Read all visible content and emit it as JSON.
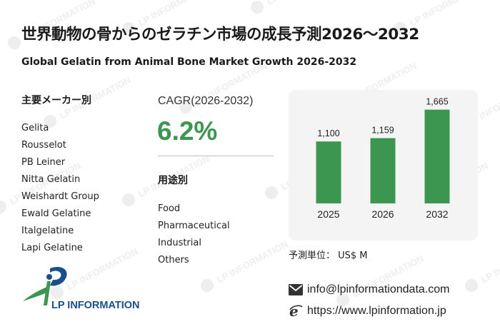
{
  "header": {
    "title": "世界動物の骨からのゼラチン市場の成長予測2026～2032",
    "subtitle": "Global Gelatin from Animal Bone Market Growth 2026-2032"
  },
  "manufacturers": {
    "heading": "主要メーカー別",
    "items": [
      "Gelita",
      "Rousselot",
      "PB Leiner",
      "Nitta Gelatin",
      "Weishardt Group",
      "Ewald Gelatine",
      "Italgelatine",
      "Lapi Gelatine"
    ]
  },
  "cagr": {
    "label": "CAGR(2026-2032)",
    "value": "6.2%"
  },
  "applications": {
    "heading": "用途別",
    "items": [
      "Food",
      "Pharmaceutical",
      "Industrial",
      "Others"
    ]
  },
  "chart_data": {
    "type": "bar",
    "categories": [
      "2025",
      "2026",
      "2032"
    ],
    "values": [
      1100,
      1159,
      1665
    ],
    "value_labels": [
      "1,100",
      "1,159",
      "1,665"
    ],
    "ylim": [
      0,
      1800
    ],
    "grid": false,
    "legend": "none",
    "bar_color": "#3d9650"
  },
  "unit": "予測単位：  US$ M",
  "contact": {
    "email": "info@lpinformationdata.com",
    "website": "https://www.lpinformation.jp"
  },
  "logo": {
    "text": "LP INFORMATION"
  },
  "watermark": {
    "text": "LP INFORMATION"
  },
  "colors": {
    "accent": "#3d9650",
    "logo_blue": "#1a4f8b",
    "panel": "#f3f4f3"
  }
}
